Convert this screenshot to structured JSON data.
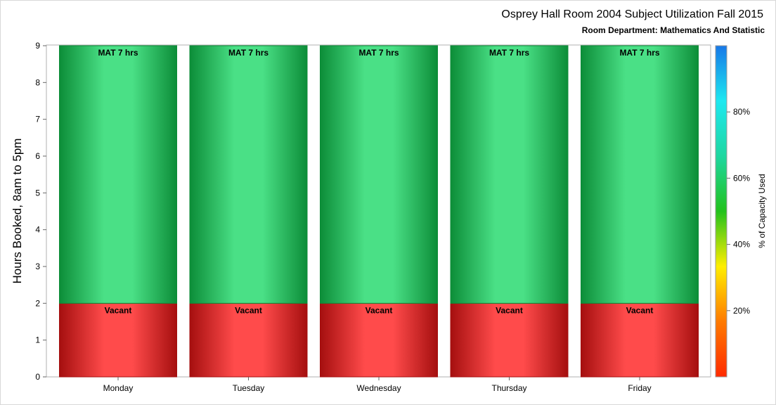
{
  "chart_data": {
    "type": "bar",
    "stacked": true,
    "title": "Osprey Hall Room 2004 Subject Utilization Fall 2015",
    "subtitle": "Room Department:  Mathematics And Statistic",
    "ylabel": "Hours Booked, 8am to 5pm",
    "ylim": [
      0,
      9
    ],
    "yticks": [
      "0",
      "1",
      "2",
      "3",
      "4",
      "5",
      "6",
      "7",
      "8",
      "9"
    ],
    "categories": [
      "Monday",
      "Tuesday",
      "Wednesday",
      "Thursday",
      "Friday"
    ],
    "series": [
      {
        "values": [
          2,
          2,
          2,
          2,
          2
        ],
        "labels": [
          "Vacant",
          "Vacant",
          "Vacant",
          "Vacant",
          "Vacant"
        ],
        "color": "#ff4b4b",
        "edge": "#a50f0f"
      },
      {
        "values": [
          7,
          7,
          7,
          7,
          7
        ],
        "labels": [
          "MAT 7 hrs",
          "MAT 7 hrs",
          "MAT 7 hrs",
          "MAT 7 hrs",
          "MAT 7 hrs"
        ],
        "color": "#4ae086",
        "edge": "#0c8d38"
      }
    ],
    "colorbar": {
      "label": "% of Capacity Used",
      "ticks": [
        "20%",
        "40%",
        "60%",
        "80%"
      ],
      "tick_values": [
        20,
        40,
        60,
        80
      ],
      "range": [
        0,
        100
      ],
      "colors": [
        "#ff2a00",
        "#ff7a00",
        "#ffee00",
        "#22c21c",
        "#1ed7a0",
        "#1ee8f0",
        "#1778e8"
      ]
    }
  }
}
